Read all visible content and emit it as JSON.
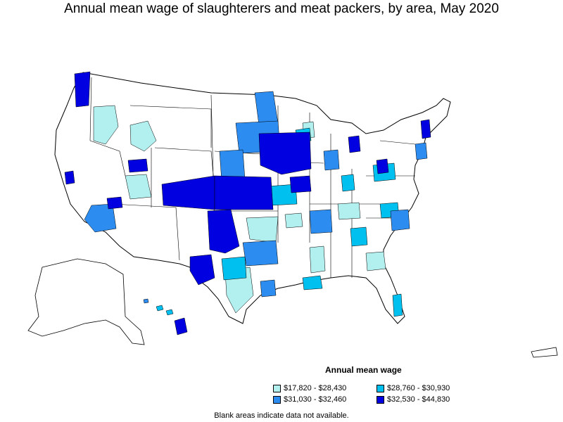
{
  "title": "Annual mean wage of slaughterers and meat packers, by area, May 2020",
  "legend": {
    "title": "Annual mean wage",
    "items": [
      {
        "label": "$17,820 - $28,430",
        "color": "#b2f0f0"
      },
      {
        "label": "$28,760 - $30,930",
        "color": "#00c0f0"
      },
      {
        "label": "$31,030 - $32,460",
        "color": "#2c8cf0"
      },
      {
        "label": "$32,530 - $44,830",
        "color": "#0000e0"
      }
    ]
  },
  "footnote": "Blank areas indicate data not available.",
  "colors": {
    "tier1": "#b2f0f0",
    "tier2": "#00c0f0",
    "tier3": "#2c8cf0",
    "tier4": "#0000e0",
    "blank": "#ffffff",
    "border": "#000000"
  }
}
